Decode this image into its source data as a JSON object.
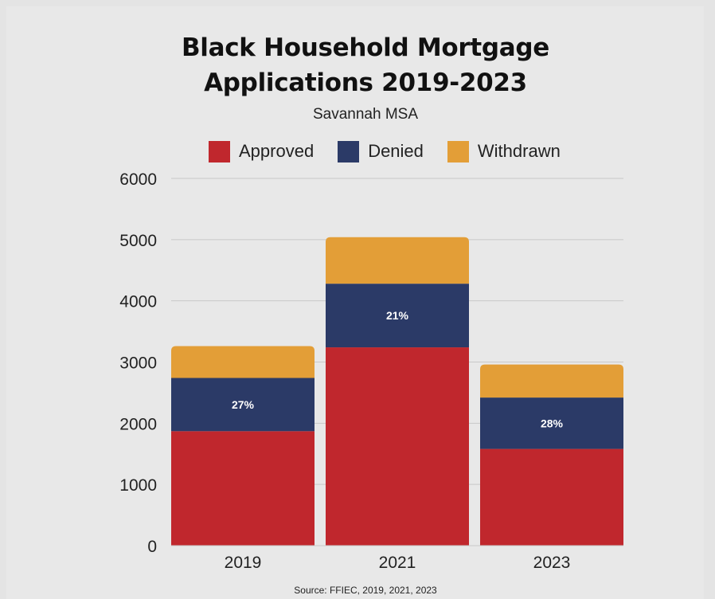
{
  "title_line1": "Black Household Mortgage",
  "title_line2": "Applications 2019-2023",
  "subtitle": "Savannah MSA",
  "source": "Source: FFIEC, 2019, 2021, 2023",
  "colors": {
    "approved": "#c0272d",
    "denied": "#2b3a67",
    "withdrawn": "#e39e37",
    "grid": "#c8c8c8"
  },
  "chart_data": {
    "type": "bar",
    "stacked": true,
    "categories": [
      "2019",
      "2021",
      "2023"
    ],
    "series": [
      {
        "name": "Approved",
        "values": [
          1870,
          3240,
          1580
        ]
      },
      {
        "name": "Denied",
        "values": [
          870,
          1040,
          840
        ]
      },
      {
        "name": "Withdrawn",
        "values": [
          520,
          760,
          540
        ]
      }
    ],
    "denied_labels": [
      "27%",
      "21%",
      "28%"
    ],
    "y_ticks": [
      0,
      1000,
      2000,
      3000,
      4000,
      5000,
      6000
    ],
    "ylim": [
      0,
      6000
    ],
    "title": "Black Household Mortgage Applications 2019-2023",
    "subtitle": "Savannah MSA",
    "legend": [
      "Approved",
      "Denied",
      "Withdrawn"
    ],
    "legend_position": "top",
    "grid": true
  }
}
